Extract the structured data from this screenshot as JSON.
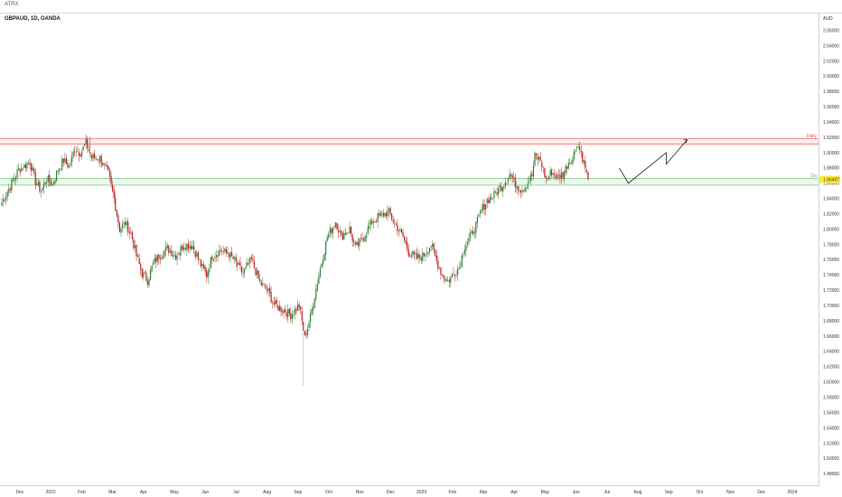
{
  "header": {
    "title": "ATRX"
  },
  "symbol_label": "GBPAUD, 1D, OANDA",
  "colors": {
    "up": "#2e7d32",
    "down": "#b71c1c",
    "resistance": "#ef5350",
    "support": "#66bb6a",
    "price_badge": "#ffeb3b",
    "projection": "#000000"
  },
  "chart_data": {
    "type": "candlestick",
    "title": "GBPAUD, 1D, OANDA",
    "currency_label": "AUD",
    "y_ticks": [
      "2.06000",
      "2.04000",
      "2.02000",
      "2.00000",
      "1.98000",
      "1.96000",
      "1.94000",
      "1.92000",
      "1.90000",
      "1.88000",
      "1.86000",
      "1.84000",
      "1.82000",
      "1.80000",
      "1.78000",
      "1.76000",
      "1.74000",
      "1.72000",
      "1.70000",
      "1.68000",
      "1.66000",
      "1.64000",
      "1.62000",
      "1.60000",
      "1.58000",
      "1.56000",
      "1.54000",
      "1.52000",
      "1.50000",
      "1.48000"
    ],
    "x_ticks": [
      "Dec",
      "2022",
      "Feb",
      "Mar",
      "Apr",
      "May",
      "Jun",
      "Jul",
      "Aug",
      "Sep",
      "Oct",
      "Nov",
      "Dec",
      "2023",
      "Feb",
      "Mar",
      "Apr",
      "May",
      "Jun",
      "Jul",
      "Aug",
      "Sep",
      "Oct",
      "Nov",
      "Dec",
      "2024"
    ],
    "ylim": [
      1.465,
      2.082
    ],
    "last_price": "1.86497",
    "zones": [
      {
        "label": "Daily",
        "from": 1.9115,
        "to": 1.9185
      },
      {
        "label": "Da",
        "from": 1.8575,
        "to": 1.8665
      }
    ],
    "price_path": [
      [
        1.835,
        0
      ],
      [
        1.878,
        12
      ],
      [
        1.888,
        20
      ],
      [
        1.862,
        24
      ],
      [
        1.85,
        28
      ],
      [
        1.866,
        32
      ],
      [
        1.858,
        36
      ],
      [
        1.878,
        40
      ],
      [
        1.89,
        44
      ],
      [
        1.882,
        48
      ],
      [
        1.905,
        52
      ],
      [
        1.9,
        56
      ],
      [
        1.912,
        60
      ],
      [
        1.894,
        64
      ],
      [
        1.893,
        70
      ],
      [
        1.872,
        76
      ],
      [
        1.84,
        80
      ],
      [
        1.8,
        84
      ],
      [
        1.808,
        88
      ],
      [
        1.795,
        92
      ],
      [
        1.765,
        96
      ],
      [
        1.742,
        100
      ],
      [
        1.733,
        104
      ],
      [
        1.755,
        108
      ],
      [
        1.765,
        112
      ],
      [
        1.775,
        118
      ],
      [
        1.765,
        124
      ],
      [
        1.78,
        130
      ],
      [
        1.778,
        136
      ],
      [
        1.753,
        142
      ],
      [
        1.74,
        146
      ],
      [
        1.765,
        150
      ],
      [
        1.772,
        156
      ],
      [
        1.768,
        162
      ],
      [
        1.758,
        166
      ],
      [
        1.742,
        172
      ],
      [
        1.76,
        178
      ],
      [
        1.73,
        184
      ],
      [
        1.718,
        190
      ],
      [
        1.702,
        194
      ],
      [
        1.695,
        200
      ],
      [
        1.688,
        206
      ],
      [
        1.7,
        212
      ],
      [
        1.658,
        216
      ],
      [
        1.685,
        220
      ],
      [
        1.74,
        226
      ],
      [
        1.79,
        232
      ],
      [
        1.81,
        238
      ],
      [
        1.79,
        242
      ],
      [
        1.8,
        248
      ],
      [
        1.775,
        252
      ],
      [
        1.79,
        258
      ],
      [
        1.81,
        264
      ],
      [
        1.818,
        270
      ],
      [
        1.822,
        276
      ],
      [
        1.808,
        280
      ],
      [
        1.79,
        286
      ],
      [
        1.77,
        290
      ],
      [
        1.762,
        296
      ],
      [
        1.765,
        300
      ],
      [
        1.78,
        306
      ],
      [
        1.758,
        310
      ],
      [
        1.74,
        314
      ],
      [
        1.732,
        318
      ],
      [
        1.742,
        322
      ],
      [
        1.75,
        326
      ],
      [
        1.778,
        330
      ],
      [
        1.79,
        334
      ],
      [
        1.805,
        338
      ],
      [
        1.825,
        342
      ],
      [
        1.838,
        346
      ],
      [
        1.842,
        350
      ],
      [
        1.852,
        354
      ],
      [
        1.86,
        358
      ],
      [
        1.872,
        362
      ],
      [
        1.86,
        366
      ],
      [
        1.852,
        370
      ],
      [
        1.858,
        374
      ],
      [
        1.87,
        378
      ],
      [
        1.895,
        380
      ],
      [
        1.89,
        384
      ],
      [
        1.865,
        388
      ],
      [
        1.875,
        392
      ],
      [
        1.868,
        396
      ],
      [
        1.872,
        400
      ],
      [
        1.888,
        404
      ],
      [
        1.893,
        407
      ],
      [
        1.913,
        410
      ],
      [
        1.9,
        413
      ],
      [
        1.88,
        416
      ],
      [
        1.865,
        418
      ]
    ],
    "projection_x": [
      0.7355,
      0.7462,
      0.7912,
      0.7912,
      0.8162
    ],
    "projection_y": [
      1.88,
      1.86,
      1.9,
      1.885,
      1.917
    ]
  }
}
